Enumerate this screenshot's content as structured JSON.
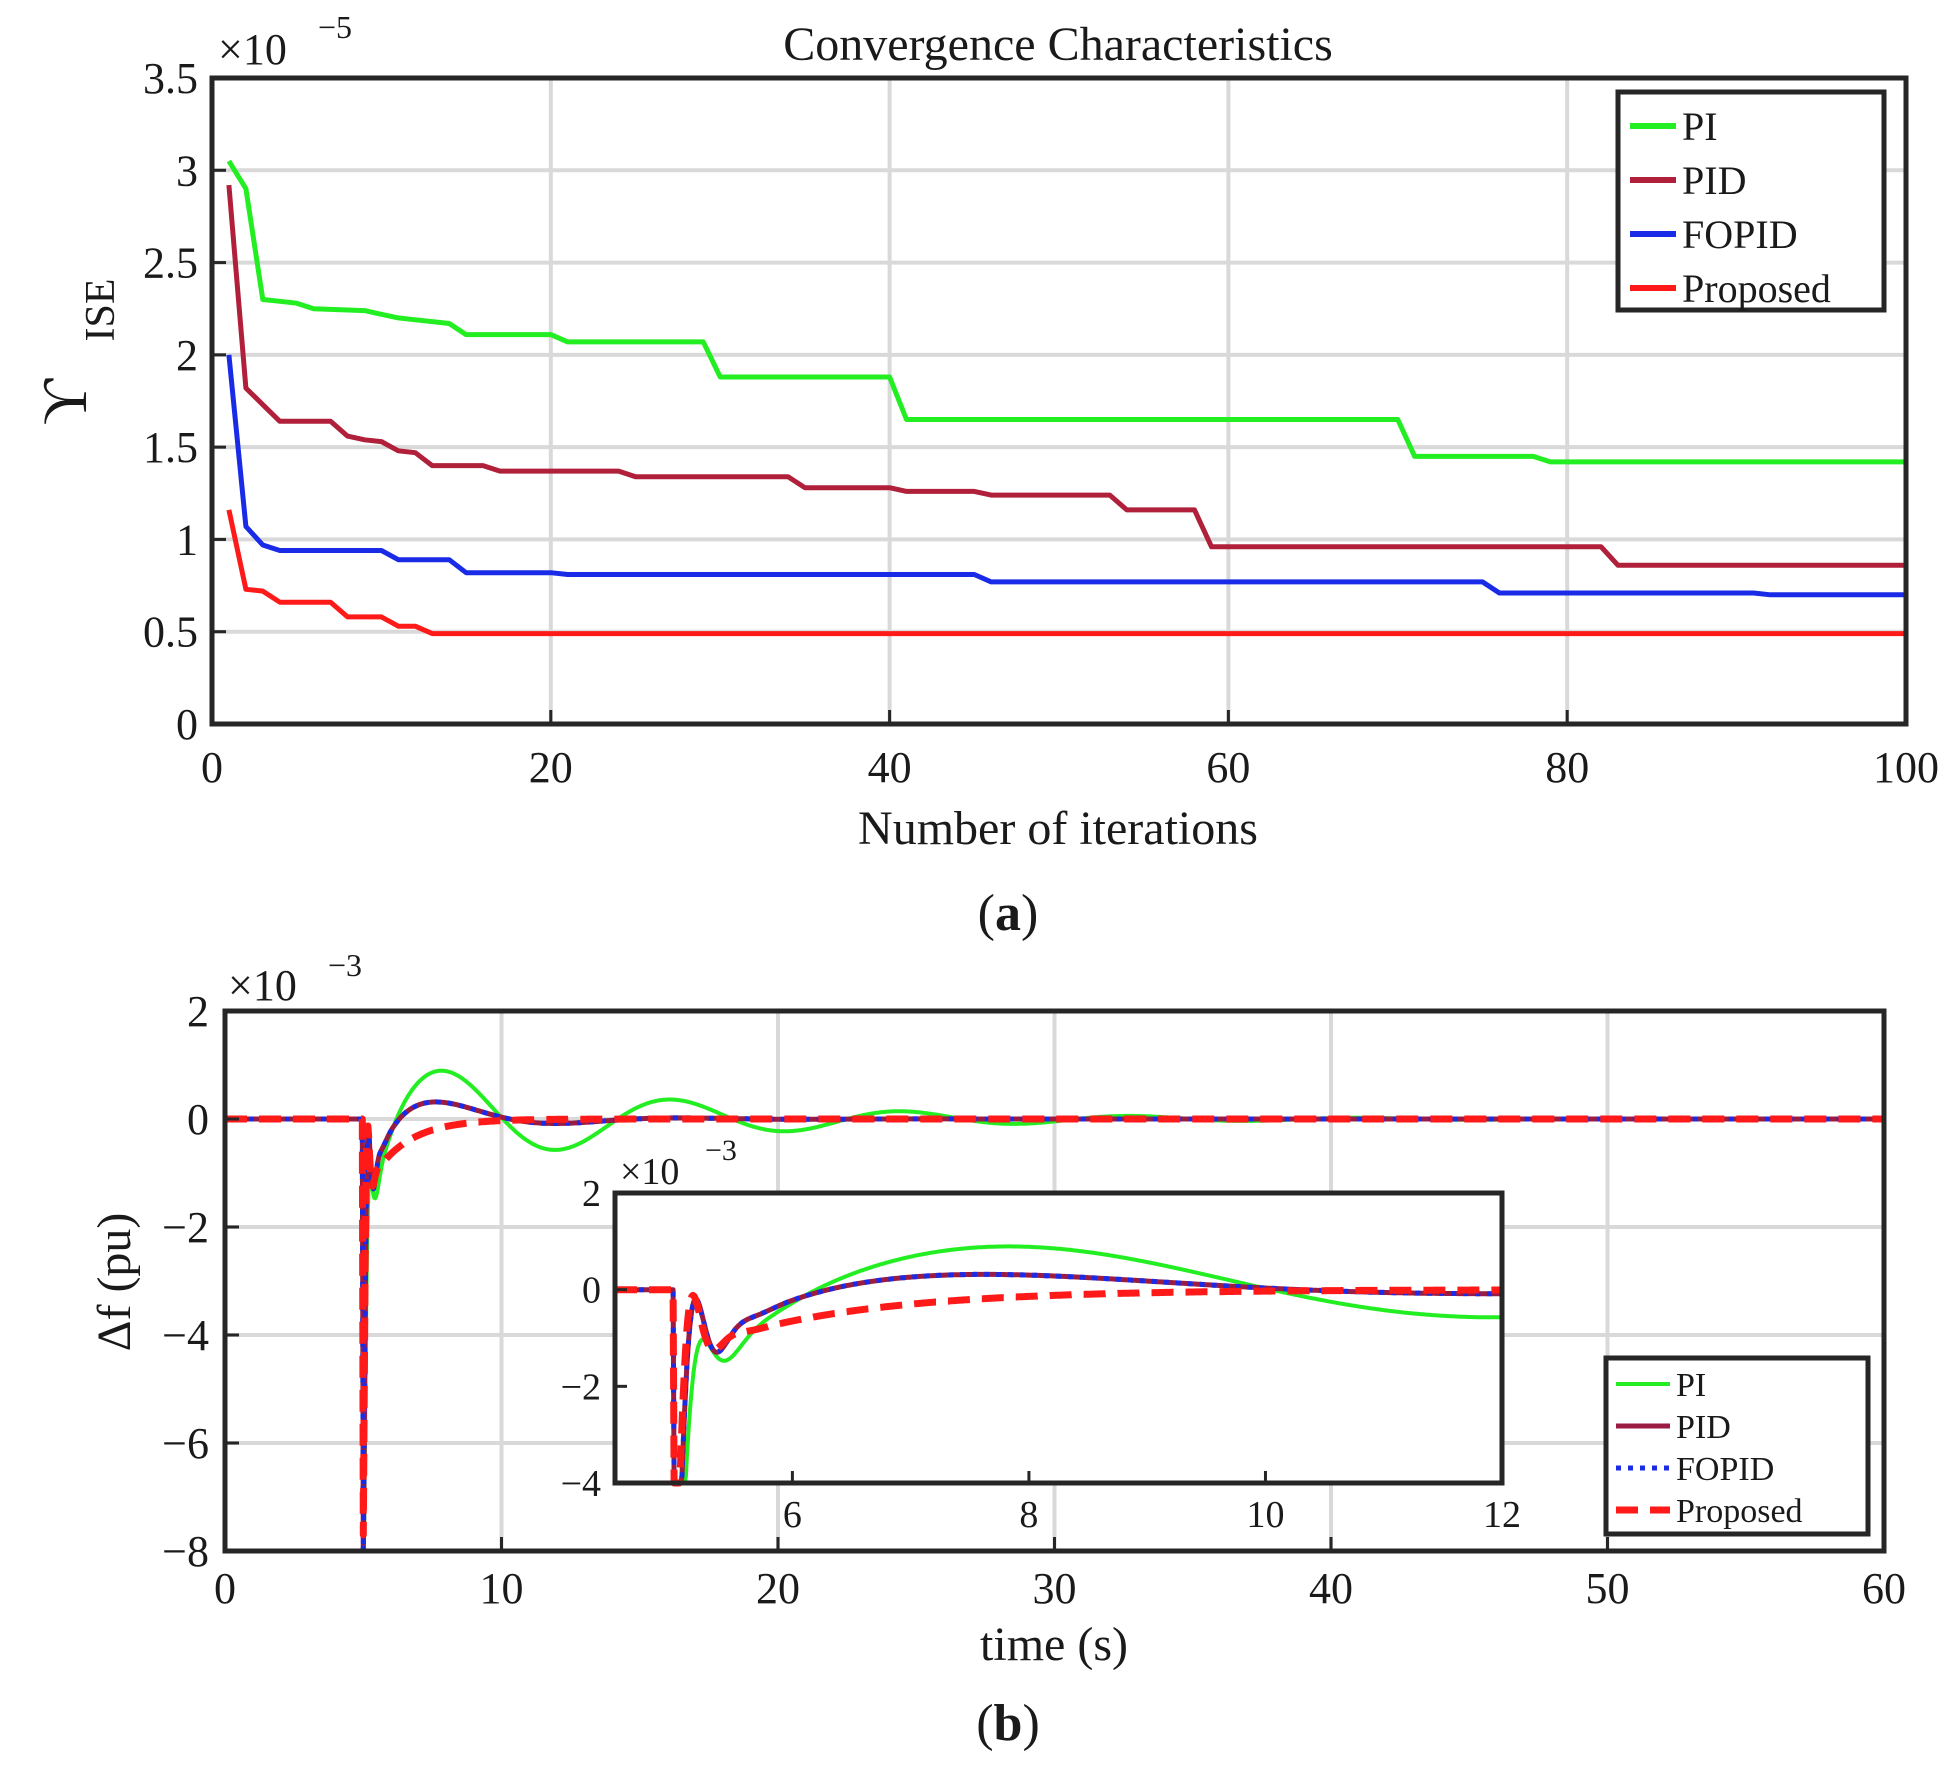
{
  "chart_data": [
    {
      "type": "line",
      "title": "Convergence Characteristics",
      "xlabel": "Number of iterations",
      "ylabel": "ϒ",
      "ylabel_sub": "ISE",
      "exponent_prefix": "×10",
      "exponent": "−5",
      "xlim": [
        0,
        100
      ],
      "ylim": [
        0,
        3.5
      ],
      "xticks": [
        "0",
        "20",
        "40",
        "60",
        "80",
        "100"
      ],
      "yticks": [
        "0",
        "0.5",
        "1",
        "1.5",
        "2",
        "2.5",
        "3",
        "3.5"
      ],
      "panel_label": "(a)",
      "panel_letter": "a",
      "series": [
        {
          "name": "PI",
          "color": "#22ee22",
          "points": [
            [
              1,
              3.05
            ],
            [
              2,
              2.9
            ],
            [
              3,
              2.3
            ],
            [
              4,
              2.29
            ],
            [
              5,
              2.28
            ],
            [
              6,
              2.25
            ],
            [
              9,
              2.24
            ],
            [
              10,
              2.22
            ],
            [
              11,
              2.2
            ],
            [
              12,
              2.19
            ],
            [
              13,
              2.18
            ],
            [
              14,
              2.17
            ],
            [
              15,
              2.11
            ],
            [
              20,
              2.11
            ],
            [
              21,
              2.07
            ],
            [
              29,
              2.07
            ],
            [
              30,
              1.88
            ],
            [
              40,
              1.88
            ],
            [
              41,
              1.65
            ],
            [
              70,
              1.65
            ],
            [
              71,
              1.45
            ],
            [
              78,
              1.45
            ],
            [
              79,
              1.42
            ],
            [
              100,
              1.42
            ]
          ]
        },
        {
          "name": "PID",
          "color": "#b0203a",
          "points": [
            [
              1,
              2.92
            ],
            [
              2,
              1.82
            ],
            [
              3,
              1.73
            ],
            [
              4,
              1.64
            ],
            [
              7,
              1.64
            ],
            [
              8,
              1.56
            ],
            [
              9,
              1.54
            ],
            [
              10,
              1.53
            ],
            [
              11,
              1.48
            ],
            [
              12,
              1.47
            ],
            [
              13,
              1.4
            ],
            [
              16,
              1.4
            ],
            [
              17,
              1.37
            ],
            [
              24,
              1.37
            ],
            [
              25,
              1.34
            ],
            [
              34,
              1.34
            ],
            [
              35,
              1.28
            ],
            [
              40,
              1.28
            ],
            [
              41,
              1.26
            ],
            [
              45,
              1.26
            ],
            [
              46,
              1.24
            ],
            [
              53,
              1.24
            ],
            [
              54,
              1.16
            ],
            [
              58,
              1.16
            ],
            [
              59,
              0.96
            ],
            [
              82,
              0.96
            ],
            [
              83,
              0.86
            ],
            [
              100,
              0.86
            ]
          ]
        },
        {
          "name": "FOPID",
          "color": "#1a2be8",
          "points": [
            [
              1,
              2.0
            ],
            [
              2,
              1.07
            ],
            [
              3,
              0.97
            ],
            [
              4,
              0.94
            ],
            [
              10,
              0.94
            ],
            [
              11,
              0.89
            ],
            [
              14,
              0.89
            ],
            [
              15,
              0.82
            ],
            [
              20,
              0.82
            ],
            [
              21,
              0.81
            ],
            [
              45,
              0.81
            ],
            [
              46,
              0.77
            ],
            [
              60,
              0.77
            ],
            [
              75,
              0.77
            ],
            [
              76,
              0.71
            ],
            [
              91,
              0.71
            ],
            [
              92,
              0.7
            ],
            [
              100,
              0.7
            ]
          ]
        },
        {
          "name": "Proposed",
          "color": "#ff1a1a",
          "points": [
            [
              1,
              1.16
            ],
            [
              2,
              0.73
            ],
            [
              3,
              0.72
            ],
            [
              4,
              0.66
            ],
            [
              7,
              0.66
            ],
            [
              8,
              0.58
            ],
            [
              10,
              0.58
            ],
            [
              11,
              0.53
            ],
            [
              12,
              0.53
            ],
            [
              13,
              0.49
            ],
            [
              100,
              0.49
            ]
          ]
        }
      ]
    },
    {
      "type": "line",
      "xlabel": "time (s)",
      "ylabel": "Δf (pu)",
      "exponent_prefix": "×10",
      "exponent": "−3",
      "xlim": [
        0,
        60
      ],
      "ylim": [
        -8,
        2
      ],
      "xticks": [
        "0",
        "10",
        "20",
        "30",
        "40",
        "50",
        "60"
      ],
      "yticks": [
        "−8",
        "−6",
        "−4",
        "−2",
        "0",
        "2"
      ],
      "panel_label": "(b)",
      "panel_letter": "b",
      "series": [
        {
          "name": "PI",
          "color": "#22ee22",
          "style": "solid"
        },
        {
          "name": "PID",
          "color": "#9a1c42",
          "style": "solid"
        },
        {
          "name": "FOPID",
          "color": "#1a2be8",
          "style": "dotted"
        },
        {
          "name": "Proposed",
          "color": "#ff1a1a",
          "style": "dashed"
        }
      ],
      "inset": {
        "xlim": [
          4.5,
          12
        ],
        "ylim": [
          -4,
          2
        ],
        "xticks": [
          "6",
          "8",
          "10",
          "12"
        ],
        "yticks": [
          "−4",
          "−2",
          "0",
          "2"
        ],
        "exponent_prefix": "×10",
        "exponent": "−3"
      }
    }
  ]
}
